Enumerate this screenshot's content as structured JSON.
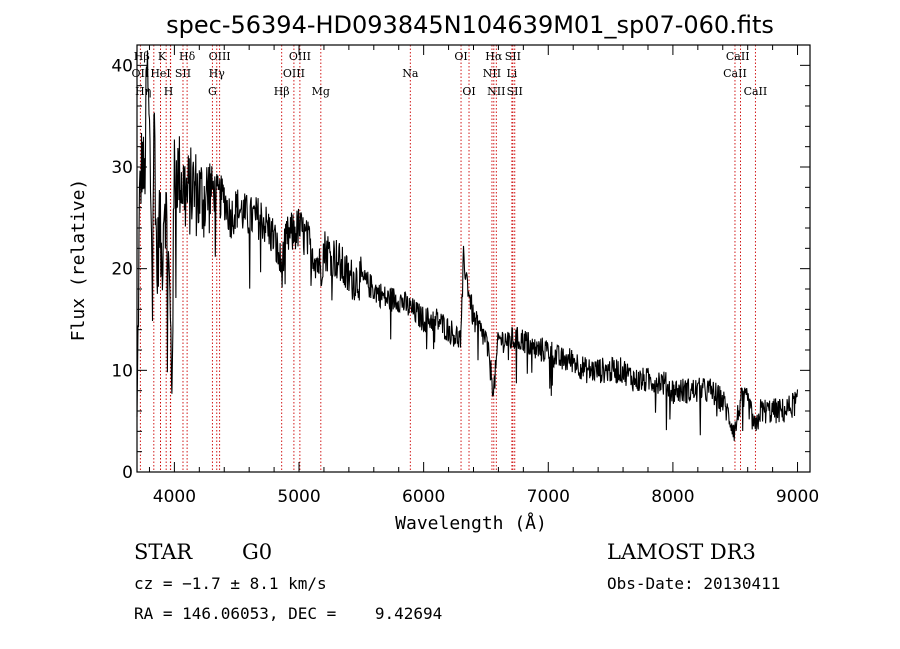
{
  "chart_data": {
    "type": "line",
    "title": "spec-56394-HD093845N104639M01_sp07-060.fits",
    "xlabel": "Wavelength (Å)",
    "ylabel": "Flux (relative)",
    "xlim": [
      3700,
      9100
    ],
    "ylim": [
      0,
      42
    ],
    "x_ticks": [
      4000,
      5000,
      6000,
      7000,
      8000,
      9000
    ],
    "y_ticks": [
      0,
      10,
      20,
      30,
      40
    ],
    "grid": false,
    "series": [
      {
        "name": "spectrum",
        "x": [
          3700,
          3720,
          3740,
          3760,
          3780,
          3800,
          3820,
          3840,
          3860,
          3880,
          3900,
          3920,
          3940,
          3960,
          3980,
          4000,
          4050,
          4100,
          4150,
          4200,
          4250,
          4300,
          4350,
          4400,
          4450,
          4500,
          4600,
          4700,
          4800,
          4860,
          4900,
          5000,
          5100,
          5175,
          5200,
          5300,
          5400,
          5500,
          5600,
          5700,
          5800,
          5900,
          6000,
          6100,
          6200,
          6300,
          6320,
          6400,
          6500,
          6563,
          6600,
          6700,
          6800,
          6900,
          7000,
          7100,
          7200,
          7300,
          7400,
          7500,
          7600,
          7700,
          7800,
          7900,
          8000,
          8100,
          8200,
          8300,
          8400,
          8498,
          8542,
          8600,
          8662,
          8700,
          8800,
          8900,
          9000
        ],
        "values": [
          4,
          26,
          31,
          28,
          40,
          33,
          22,
          35,
          19,
          25,
          20,
          28,
          24,
          18,
          9,
          30,
          29,
          27,
          28,
          27,
          27,
          28,
          27,
          27,
          25,
          26,
          25,
          25,
          23,
          20,
          23,
          24,
          22,
          20,
          22,
          21,
          19,
          19,
          18,
          17,
          17,
          16,
          15,
          15,
          14,
          13,
          21,
          15,
          13,
          8,
          13,
          13,
          13,
          12,
          12,
          11,
          11,
          10,
          10,
          10,
          10,
          9,
          9,
          9,
          8,
          8,
          8,
          8,
          7,
          4,
          7,
          7,
          4,
          6,
          6,
          6,
          7
        ]
      }
    ],
    "lines": [
      {
        "name": "Hη",
        "wave": 3835
      },
      {
        "name": "OII",
        "wave": 3727
      },
      {
        "name": "Hζ",
        "wave": 3889
      },
      {
        "name": "Hε",
        "wave": 3970
      },
      {
        "name": "K",
        "wave": 3934
      },
      {
        "name": "H",
        "wave": 3968
      },
      {
        "name": "HeI",
        "wave": 3889
      },
      {
        "name": "Hδ",
        "wave": 4102
      },
      {
        "name": "SII",
        "wave": 4069
      },
      {
        "name": "OIII",
        "wave": 4363
      },
      {
        "name": "Hγ",
        "wave": 4340
      },
      {
        "name": "G",
        "wave": 4305
      },
      {
        "name": "Hβ",
        "wave": 4861
      },
      {
        "name": "OIII",
        "wave": 4959
      },
      {
        "name": "OIII",
        "wave": 5007
      },
      {
        "name": "Mg",
        "wave": 5175
      },
      {
        "name": "Na",
        "wave": 5893
      },
      {
        "name": "OI",
        "wave": 6300
      },
      {
        "name": "OI",
        "wave": 6364
      },
      {
        "name": "Hα",
        "wave": 6563
      },
      {
        "name": "NII",
        "wave": 6548
      },
      {
        "name": "NII",
        "wave": 6583
      },
      {
        "name": "SII",
        "wave": 6716
      },
      {
        "name": "SII",
        "wave": 6731
      },
      {
        "name": "Li",
        "wave": 6708
      },
      {
        "name": "CaII",
        "wave": 8498
      },
      {
        "name": "CaII",
        "wave": 8542
      },
      {
        "name": "CaII",
        "wave": 8662
      }
    ],
    "line_labels": [
      {
        "text": "Hβ",
        "wave": 3738,
        "row": 0
      },
      {
        "text": "OII",
        "wave": 3727,
        "row": 1
      },
      {
        "text": "Hη",
        "wave": 3750,
        "row": 2
      },
      {
        "text": "K",
        "wave": 3900,
        "row": 0
      },
      {
        "text": "HeI",
        "wave": 3889,
        "row": 1
      },
      {
        "text": "H",
        "wave": 3953,
        "row": 2
      },
      {
        "text": "Hδ",
        "wave": 4102,
        "row": 0
      },
      {
        "text": "SII",
        "wave": 4069,
        "row": 1
      },
      {
        "text": "OIII",
        "wave": 4363,
        "row": 0
      },
      {
        "text": "Hγ",
        "wave": 4340,
        "row": 1
      },
      {
        "text": "G",
        "wave": 4305,
        "row": 2
      },
      {
        "text": "Hβ",
        "wave": 4861,
        "row": 2
      },
      {
        "text": "OIII",
        "wave": 5007,
        "row": 0
      },
      {
        "text": "OIII",
        "wave": 4959,
        "row": 1
      },
      {
        "text": "Mg",
        "wave": 5175,
        "row": 2
      },
      {
        "text": "Na",
        "wave": 5893,
        "row": 1
      },
      {
        "text": "OI",
        "wave": 6300,
        "row": 0
      },
      {
        "text": "OI",
        "wave": 6364,
        "row": 2
      },
      {
        "text": "Hα",
        "wave": 6563,
        "row": 0
      },
      {
        "text": "NII",
        "wave": 6548,
        "row": 1
      },
      {
        "text": "NII",
        "wave": 6583,
        "row": 2
      },
      {
        "text": "SII",
        "wave": 6716,
        "row": 0
      },
      {
        "text": "Li",
        "wave": 6708,
        "row": 1
      },
      {
        "text": "SII",
        "wave": 6731,
        "row": 2
      },
      {
        "text": "CaII",
        "wave": 8520,
        "row": 0
      },
      {
        "text": "CaII",
        "wave": 8498,
        "row": 1
      },
      {
        "text": "CaII",
        "wave": 8662,
        "row": 2
      }
    ]
  },
  "info": {
    "class": "STAR",
    "subclass": "G0",
    "survey": "LAMOST DR3",
    "redshift": "cz = −1.7 ± 8.1 km/s",
    "obs_date": "Obs-Date: 20130411",
    "coords": "RA = 146.06053, DEC =    9.42694"
  },
  "colors": {
    "spectrum": "#000000",
    "line_markers": "#cc0000",
    "axes": "#000000"
  }
}
